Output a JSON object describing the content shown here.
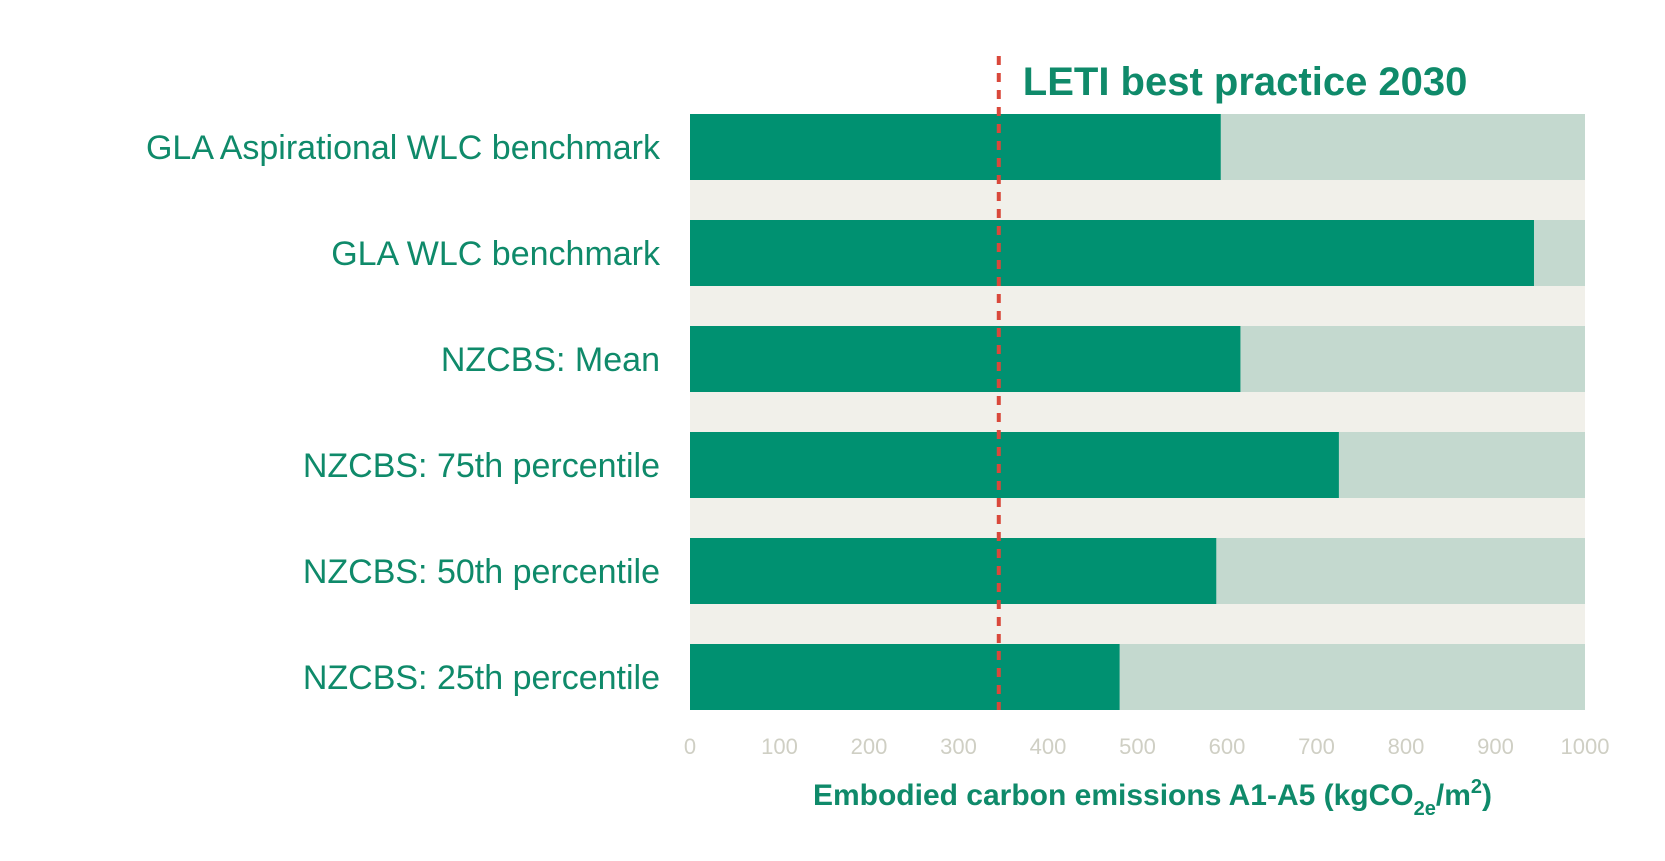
{
  "colors": {
    "bar": "#009171",
    "remainder": "#c4d9cf",
    "gap": "#f1f0ea",
    "reference": "#d9483b",
    "text": "#0f8a6a",
    "tick": "#cfcfc4"
  },
  "chart_data": {
    "type": "bar",
    "orientation": "horizontal",
    "categories": [
      "GLA Aspirational WLC benchmark",
      "GLA WLC benchmark",
      "NZCBS: Mean",
      "NZCBS: 75th percentile",
      "NZCBS: 50th percentile",
      "NZCBS: 25th percentile"
    ],
    "values": [
      593,
      943,
      615,
      725,
      588,
      480
    ],
    "xlim": [
      0,
      1000
    ],
    "xticks": [
      0,
      100,
      200,
      300,
      400,
      500,
      600,
      700,
      800,
      900,
      1000
    ],
    "xlabel": {
      "main": "Embodied carbon emissions A1-A5 (kgCO",
      "sub": "2e",
      "mid": "/m",
      "sup": "2",
      "end": ")"
    },
    "reference_line": {
      "value": 345,
      "label": "LETI best practice 2030",
      "style": "dotted"
    },
    "grid": false,
    "legend": "none"
  }
}
